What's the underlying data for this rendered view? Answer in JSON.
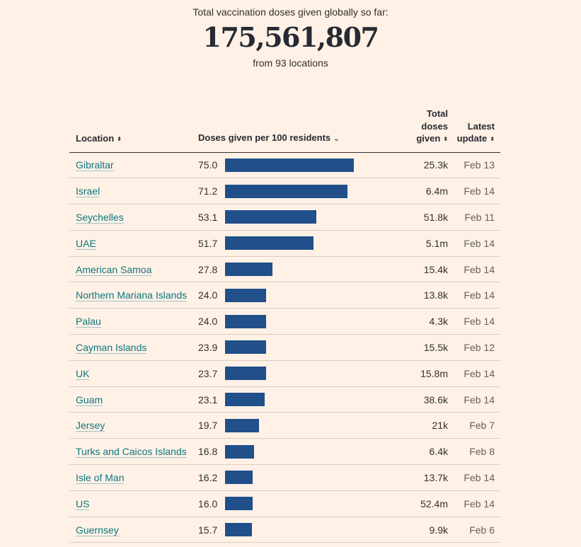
{
  "header": {
    "subtitle": "Total vaccination doses given globally so far:",
    "total": "175,561,807",
    "locations": "from 93 locations"
  },
  "table": {
    "columns": {
      "location": "Location",
      "doses": "Doses given per 100 residents",
      "total_line1": "Total",
      "total_line2": "doses",
      "total_line3": "given",
      "latest_line1": "Latest",
      "latest_line2": "update"
    },
    "max_dose": 75.0,
    "rows": [
      {
        "location": "Gibraltar",
        "dose": 75.0,
        "dose_label": "75.0",
        "total": "25.3k",
        "latest": "Feb 13"
      },
      {
        "location": "Israel",
        "dose": 71.2,
        "dose_label": "71.2",
        "total": "6.4m",
        "latest": "Feb 14"
      },
      {
        "location": "Seychelles",
        "dose": 53.1,
        "dose_label": "53.1",
        "total": "51.8k",
        "latest": "Feb 11"
      },
      {
        "location": "UAE",
        "dose": 51.7,
        "dose_label": "51.7",
        "total": "5.1m",
        "latest": "Feb 14"
      },
      {
        "location": "American Samoa",
        "dose": 27.8,
        "dose_label": "27.8",
        "total": "15.4k",
        "latest": "Feb 14"
      },
      {
        "location": "Northern Mariana Islands",
        "dose": 24.0,
        "dose_label": "24.0",
        "total": "13.8k",
        "latest": "Feb 14"
      },
      {
        "location": "Palau",
        "dose": 24.0,
        "dose_label": "24.0",
        "total": "4.3k",
        "latest": "Feb 14"
      },
      {
        "location": "Cayman Islands",
        "dose": 23.9,
        "dose_label": "23.9",
        "total": "15.5k",
        "latest": "Feb 12"
      },
      {
        "location": "UK",
        "dose": 23.7,
        "dose_label": "23.7",
        "total": "15.8m",
        "latest": "Feb 14"
      },
      {
        "location": "Guam",
        "dose": 23.1,
        "dose_label": "23.1",
        "total": "38.6k",
        "latest": "Feb 14"
      },
      {
        "location": "Jersey",
        "dose": 19.7,
        "dose_label": "19.7",
        "total": "21k",
        "latest": "Feb 7"
      },
      {
        "location": "Turks and Caicos Islands",
        "dose": 16.8,
        "dose_label": "16.8",
        "total": "6.4k",
        "latest": "Feb 8"
      },
      {
        "location": "Isle of Man",
        "dose": 16.2,
        "dose_label": "16.2",
        "total": "13.7k",
        "latest": "Feb 14"
      },
      {
        "location": "US",
        "dose": 16.0,
        "dose_label": "16.0",
        "total": "52.4m",
        "latest": "Feb 14"
      },
      {
        "location": "Guernsey",
        "dose": 15.7,
        "dose_label": "15.7",
        "total": "9.9k",
        "latest": "Feb 6"
      }
    ]
  }
}
